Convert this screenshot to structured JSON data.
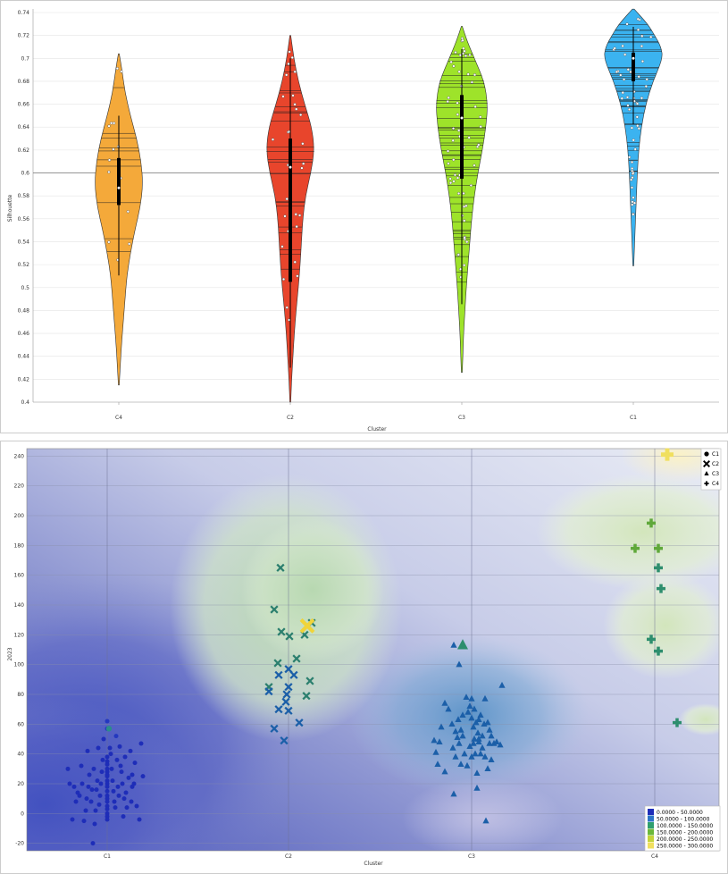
{
  "chart_data": [
    {
      "type": "violin",
      "xlabel": "Cluster",
      "ylabel": "Silhouette",
      "ylim": [
        0.4,
        0.74
      ],
      "yticks": [
        0.4,
        0.42,
        0.44,
        0.46,
        0.48,
        0.5,
        0.52,
        0.54,
        0.56,
        0.58,
        0.6,
        0.62,
        0.64,
        0.66,
        0.68,
        0.7,
        0.72,
        0.74
      ],
      "grid": true,
      "reference_line": 0.6,
      "categories": [
        "C4",
        "C2",
        "C3",
        "C1"
      ],
      "colors": [
        "#F4A93A",
        "#E8452C",
        "#9EE32A",
        "#3BB3F0"
      ],
      "violins": [
        {
          "name": "C4",
          "min": 0.415,
          "max": 0.704,
          "q1": 0.572,
          "median": 0.587,
          "q3": 0.613,
          "density": [
            [
              0.415,
              0.5
            ],
            [
              0.43,
              1.5
            ],
            [
              0.45,
              3
            ],
            [
              0.47,
              5
            ],
            [
              0.49,
              7
            ],
            [
              0.51,
              9
            ],
            [
              0.53,
              13
            ],
            [
              0.55,
              18
            ],
            [
              0.57,
              24
            ],
            [
              0.59,
              27
            ],
            [
              0.61,
              25
            ],
            [
              0.63,
              20
            ],
            [
              0.65,
              13
            ],
            [
              0.67,
              7
            ],
            [
              0.69,
              3.5
            ],
            [
              0.704,
              0.5
            ]
          ]
        },
        {
          "name": "C2",
          "min": 0.4,
          "max": 0.72,
          "q1": 0.505,
          "median": 0.605,
          "q3": 0.63,
          "density": [
            [
              0.4,
              0.5
            ],
            [
              0.42,
              1.5
            ],
            [
              0.44,
              3
            ],
            [
              0.46,
              4.5
            ],
            [
              0.48,
              6.5
            ],
            [
              0.5,
              9
            ],
            [
              0.52,
              11
            ],
            [
              0.54,
              12.5
            ],
            [
              0.56,
              14
            ],
            [
              0.58,
              17
            ],
            [
              0.6,
              23
            ],
            [
              0.62,
              27
            ],
            [
              0.64,
              24
            ],
            [
              0.66,
              16
            ],
            [
              0.68,
              9
            ],
            [
              0.7,
              4
            ],
            [
              0.72,
              0.5
            ]
          ]
        },
        {
          "name": "C3",
          "min": 0.426,
          "max": 0.728,
          "q1": 0.595,
          "median": 0.648,
          "q3": 0.668,
          "density": [
            [
              0.426,
              0.5
            ],
            [
              0.44,
              1.2
            ],
            [
              0.46,
              2
            ],
            [
              0.48,
              3.5
            ],
            [
              0.5,
              5
            ],
            [
              0.52,
              7
            ],
            [
              0.54,
              9
            ],
            [
              0.56,
              11
            ],
            [
              0.58,
              14
            ],
            [
              0.6,
              18
            ],
            [
              0.62,
              23
            ],
            [
              0.64,
              27
            ],
            [
              0.66,
              29
            ],
            [
              0.68,
              25
            ],
            [
              0.7,
              14
            ],
            [
              0.715,
              6
            ],
            [
              0.728,
              0.5
            ]
          ]
        },
        {
          "name": "C1",
          "min": 0.519,
          "max": 0.743,
          "q1": 0.68,
          "median": 0.7,
          "q3": 0.705,
          "density": [
            [
              0.519,
              0.5
            ],
            [
              0.54,
              1.5
            ],
            [
              0.56,
              2.5
            ],
            [
              0.58,
              3.5
            ],
            [
              0.6,
              4.5
            ],
            [
              0.62,
              6
            ],
            [
              0.64,
              9
            ],
            [
              0.66,
              14
            ],
            [
              0.68,
              22
            ],
            [
              0.7,
              33
            ],
            [
              0.71,
              31
            ],
            [
              0.72,
              24
            ],
            [
              0.73,
              16
            ],
            [
              0.743,
              1
            ]
          ]
        }
      ]
    },
    {
      "type": "scatter",
      "xlabel": "Cluster",
      "ylabel": "2023",
      "xcategories": [
        "C1",
        "C2",
        "C3",
        "C4"
      ],
      "ylim": [
        -25,
        245
      ],
      "yticks": [
        -20,
        0,
        20,
        40,
        60,
        80,
        100,
        120,
        140,
        160,
        180,
        200,
        220,
        240
      ],
      "grid": true,
      "legend_position": "top-right",
      "legend": [
        {
          "name": "C1",
          "marker": "circle"
        },
        {
          "name": "C2",
          "marker": "x"
        },
        {
          "name": "C3",
          "marker": "triangle"
        },
        {
          "name": "C4",
          "marker": "plus"
        }
      ],
      "color_legend": {
        "position": "bottom-right",
        "bins": [
          {
            "label": "0.0000 - 50.0000",
            "color": "#1E2DB8"
          },
          {
            "label": "50.0000 - 100.0000",
            "color": "#2B74C7"
          },
          {
            "label": "100.0000 - 150.0000",
            "color": "#2E9E6E"
          },
          {
            "label": "150.0000 - 200.0000",
            "color": "#6CB83A"
          },
          {
            "label": "200.0000 - 250.0000",
            "color": "#C4D43A"
          },
          {
            "label": "250.0000 - 300.0000",
            "color": "#F0DF5E"
          }
        ]
      },
      "series": [
        {
          "name": "C1",
          "marker": "circle",
          "color": "#1E2DB8",
          "points": [
            [
              0,
              62
            ],
            [
              0,
              57
            ],
            [
              0,
              38
            ],
            [
              0,
              35
            ],
            [
              0,
              33
            ],
            [
              0,
              30
            ],
            [
              0,
              28
            ],
            [
              0,
              26
            ],
            [
              0,
              25
            ],
            [
              0,
              22
            ],
            [
              0,
              20
            ],
            [
              0,
              18
            ],
            [
              0,
              15
            ],
            [
              0,
              12
            ],
            [
              0,
              10
            ],
            [
              0,
              8
            ],
            [
              0,
              5
            ],
            [
              0,
              3
            ],
            [
              0,
              0
            ],
            [
              0,
              -2
            ],
            [
              0,
              -4
            ],
            [
              0.03,
              44
            ],
            [
              0.04,
              40
            ],
            [
              0.05,
              30
            ],
            [
              0.06,
              22
            ],
            [
              0.07,
              15
            ],
            [
              0.08,
              8
            ],
            [
              0.09,
              4
            ],
            [
              0.1,
              52
            ],
            [
              0.11,
              36
            ],
            [
              0.12,
              18
            ],
            [
              0.13,
              12
            ],
            [
              0.14,
              45
            ],
            [
              0.15,
              32
            ],
            [
              0.16,
              28
            ],
            [
              0.17,
              20
            ],
            [
              0.18,
              -2
            ],
            [
              0.19,
              10
            ],
            [
              0.2,
              38
            ],
            [
              0.21,
              14
            ],
            [
              0.22,
              4
            ],
            [
              0.24,
              24
            ],
            [
              0.26,
              42
            ],
            [
              0.27,
              8
            ],
            [
              0.28,
              18
            ],
            [
              0.3,
              20
            ],
            [
              0.31,
              34
            ],
            [
              0.33,
              5
            ],
            [
              0.36,
              -4
            ],
            [
              0.38,
              47
            ],
            [
              0.4,
              25
            ],
            [
              0.28,
              26
            ],
            [
              -0.04,
              50
            ],
            [
              -0.05,
              36
            ],
            [
              -0.06,
              28
            ],
            [
              -0.07,
              20
            ],
            [
              -0.08,
              12
            ],
            [
              -0.09,
              6
            ],
            [
              -0.1,
              44
            ],
            [
              -0.11,
              22
            ],
            [
              -0.12,
              16
            ],
            [
              -0.13,
              2
            ],
            [
              -0.14,
              -7
            ],
            [
              -0.15,
              30
            ],
            [
              -0.16,
              -20
            ],
            [
              -0.17,
              16
            ],
            [
              -0.18,
              8
            ],
            [
              -0.2,
              26
            ],
            [
              -0.21,
              18
            ],
            [
              -0.22,
              42
            ],
            [
              -0.23,
              10
            ],
            [
              -0.24,
              2
            ],
            [
              -0.26,
              -5
            ],
            [
              -0.28,
              20
            ],
            [
              -0.29,
              32
            ],
            [
              -0.31,
              12
            ],
            [
              -0.33,
              14
            ],
            [
              -0.35,
              8
            ],
            [
              -0.37,
              18
            ],
            [
              -0.39,
              -4
            ],
            [
              -0.42,
              20
            ],
            [
              -0.44,
              30
            ]
          ],
          "highlight": [
            [
              0.02,
              57
            ]
          ]
        },
        {
          "name": "C2",
          "marker": "x",
          "color": "#1B5FA8",
          "points": [
            [
              -0.22,
              85
            ],
            [
              -0.22,
              82
            ],
            [
              -0.16,
              57
            ],
            [
              -0.12,
              101
            ],
            [
              -0.11,
              93
            ],
            [
              -0.11,
              70
            ],
            [
              -0.05,
              49
            ],
            [
              -0.03,
              75
            ],
            [
              -0.02,
              80
            ],
            [
              0.0,
              97
            ],
            [
              0.0,
              85
            ],
            [
              0.0,
              69
            ],
            [
              0.06,
              93
            ],
            [
              0.12,
              61
            ],
            [
              -0.08,
              122
            ],
            [
              0.01,
              119
            ],
            [
              -0.09,
              165
            ],
            [
              -0.16,
              137
            ],
            [
              0.09,
              104
            ],
            [
              0.18,
              120
            ],
            [
              0.26,
              128
            ],
            [
              0.2,
              79
            ],
            [
              0.24,
              89
            ]
          ],
          "highlight": [
            [
              0.21,
              126
            ]
          ]
        },
        {
          "name": "C3",
          "marker": "triangle",
          "color": "#1B5FA8",
          "points": [
            [
              -0.2,
              113
            ],
            [
              -0.14,
              100
            ],
            [
              -0.3,
              74
            ],
            [
              -0.26,
              70
            ],
            [
              -0.22,
              60
            ],
            [
              -0.18,
              55
            ],
            [
              -0.15,
              63
            ],
            [
              -0.1,
              66
            ],
            [
              -0.06,
              78
            ],
            [
              -0.04,
              68
            ],
            [
              -0.02,
              72
            ],
            [
              0.0,
              77
            ],
            [
              0.0,
              64
            ],
            [
              0.02,
              58
            ],
            [
              0.03,
              70
            ],
            [
              0.05,
              61
            ],
            [
              0.07,
              54
            ],
            [
              0.08,
              48
            ],
            [
              0.1,
              66
            ],
            [
              0.12,
              52
            ],
            [
              0.15,
              77
            ],
            [
              0.18,
              61
            ],
            [
              0.2,
              56
            ],
            [
              0.22,
              52
            ],
            [
              0.25,
              47
            ],
            [
              0.28,
              48
            ],
            [
              0.32,
              46
            ],
            [
              0.34,
              86
            ],
            [
              -0.34,
              58
            ],
            [
              -0.36,
              48
            ],
            [
              -0.38,
              33
            ],
            [
              -0.4,
              41
            ],
            [
              -0.42,
              49
            ],
            [
              -0.3,
              28
            ],
            [
              -0.21,
              44
            ],
            [
              -0.18,
              38
            ],
            [
              -0.14,
              47
            ],
            [
              -0.12,
              33
            ],
            [
              -0.08,
              40
            ],
            [
              -0.05,
              32
            ],
            [
              -0.02,
              45
            ],
            [
              0.0,
              38
            ],
            [
              0.02,
              47
            ],
            [
              0.04,
              40
            ],
            [
              0.06,
              27
            ],
            [
              0.08,
              50
            ],
            [
              0.12,
              44
            ],
            [
              0.15,
              38
            ],
            [
              0.18,
              30
            ],
            [
              0.2,
              47
            ],
            [
              0.22,
              36
            ],
            [
              -0.2,
              13
            ],
            [
              0.06,
              17
            ],
            [
              0.16,
              -5
            ],
            [
              -0.1,
              52
            ],
            [
              0.1,
              40
            ],
            [
              0.03,
              50
            ],
            [
              -0.12,
              56
            ],
            [
              0.08,
              63
            ],
            [
              -0.16,
              51
            ],
            [
              0.14,
              60
            ]
          ],
          "highlight": [
            [
              -0.1,
              113
            ]
          ]
        },
        {
          "name": "C4",
          "marker": "plus",
          "color": "#2E9E6E",
          "points": [
            [
              -0.22,
              178
            ],
            [
              -0.04,
              195
            ],
            [
              0.04,
              178
            ],
            [
              0.04,
              165
            ],
            [
              0.07,
              151
            ],
            [
              -0.04,
              117
            ],
            [
              0.04,
              109
            ],
            [
              0.25,
              61
            ]
          ],
          "highlight": [
            [
              0.14,
              241
            ]
          ]
        }
      ]
    }
  ]
}
